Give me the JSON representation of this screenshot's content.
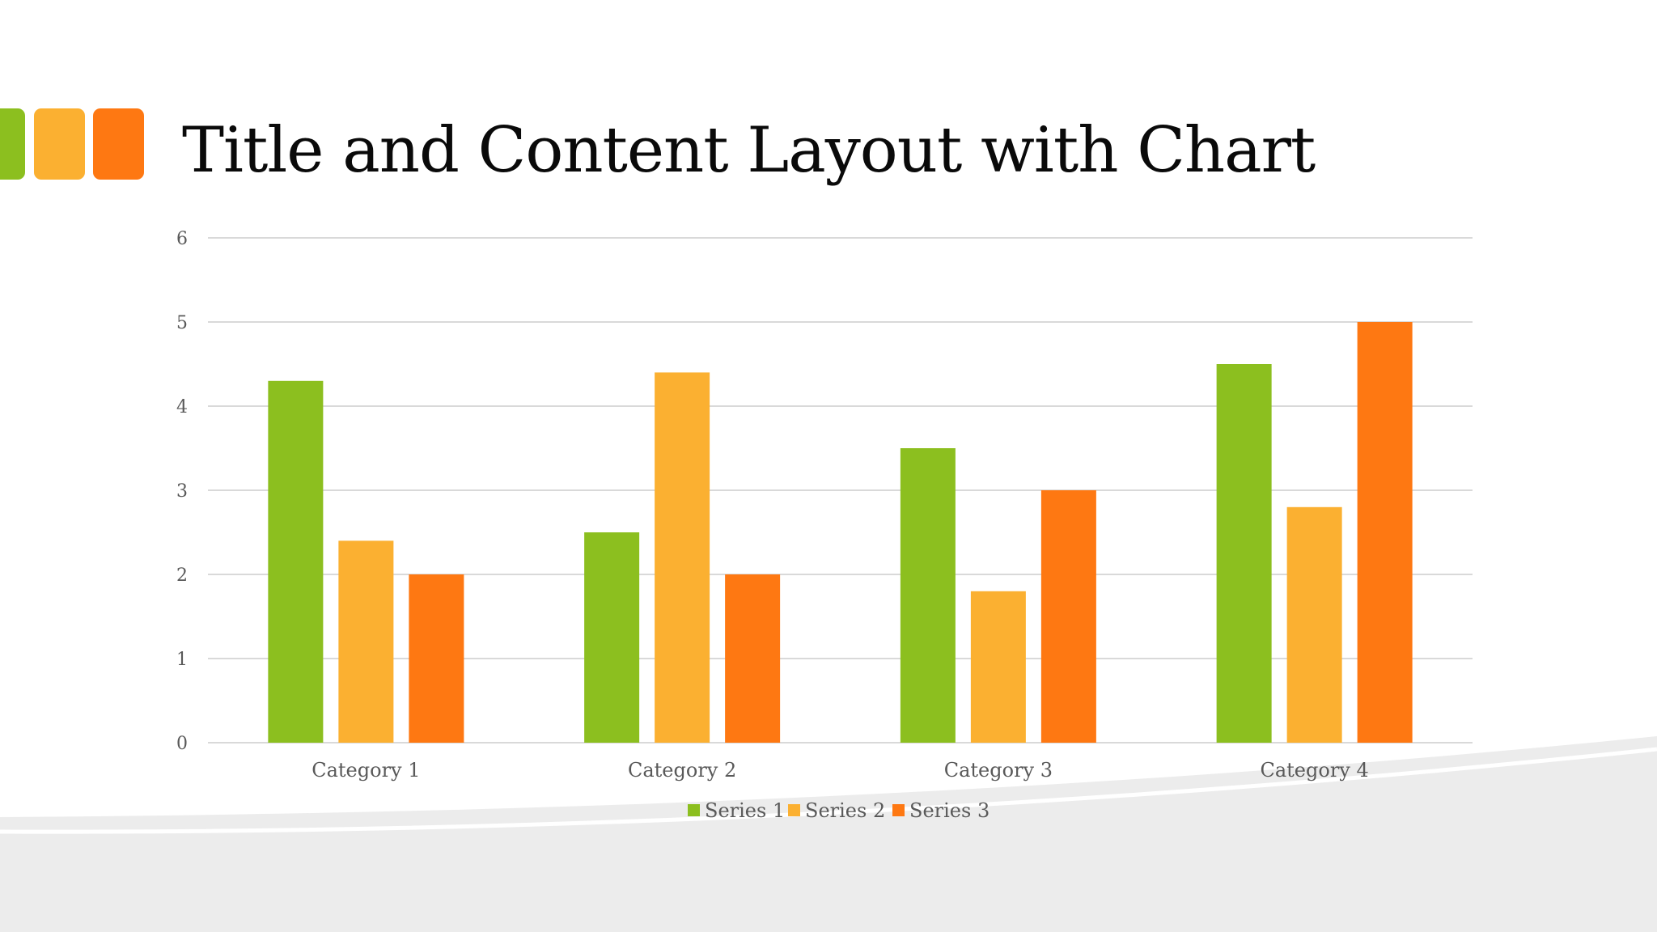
{
  "slide": {
    "title": "Title and Content Layout with Chart"
  },
  "colors": {
    "accent_1": "#8cbf1f",
    "accent_2": "#fbb031",
    "accent_3": "#fe7812",
    "gridline": "#d9d9d9",
    "axis_text": "#595959",
    "background_swoosh": "#ececec"
  },
  "chart_data": {
    "type": "bar",
    "title": "",
    "xlabel": "",
    "ylabel": "",
    "ylim": [
      0,
      6
    ],
    "yticks": [
      0,
      1,
      2,
      3,
      4,
      5,
      6
    ],
    "grid": true,
    "legend_position": "bottom",
    "categories": [
      "Category 1",
      "Category 2",
      "Category 3",
      "Category 4"
    ],
    "series": [
      {
        "name": "Series 1",
        "color": "#8cbf1f",
        "values": [
          4.3,
          2.5,
          3.5,
          4.5
        ]
      },
      {
        "name": "Series 2",
        "color": "#fbb031",
        "values": [
          2.4,
          4.4,
          1.8,
          2.8
        ]
      },
      {
        "name": "Series 3",
        "color": "#fe7812",
        "values": [
          2,
          2,
          3,
          5
        ]
      }
    ]
  }
}
